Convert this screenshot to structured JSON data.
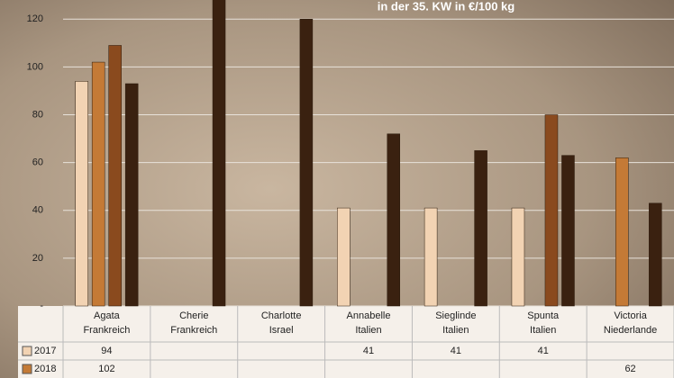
{
  "chart_data": {
    "type": "bar",
    "subtitle": "in der 35. KW in €/100 kg",
    "categories": [
      [
        "Agata",
        "Frankreich"
      ],
      [
        "Cherie",
        "Frankreich"
      ],
      [
        "Charlotte",
        "Israel"
      ],
      [
        "Annabelle",
        "Italien"
      ],
      [
        "Sieglinde",
        "Italien"
      ],
      [
        "Spunta",
        "Italien"
      ],
      [
        "Victoria",
        "Niederlande"
      ]
    ],
    "series": [
      {
        "name": "2017",
        "color": "#f2d3b3",
        "values": [
          94,
          null,
          null,
          41,
          41,
          41,
          null
        ]
      },
      {
        "name": "2018",
        "color": "#c47a36",
        "values": [
          102,
          null,
          null,
          null,
          null,
          null,
          62
        ]
      },
      {
        "color": "#8a4a1e",
        "values": [
          109,
          null,
          null,
          null,
          null,
          80,
          null
        ]
      },
      {
        "color": "#3a2110",
        "values": [
          93,
          130,
          120,
          72,
          65,
          63,
          43
        ]
      }
    ],
    "ylim": [
      0,
      128
    ],
    "yticks": [
      {
        "value": 0,
        "label": "-"
      },
      20,
      40,
      60,
      80,
      100,
      120
    ],
    "grid": true
  }
}
